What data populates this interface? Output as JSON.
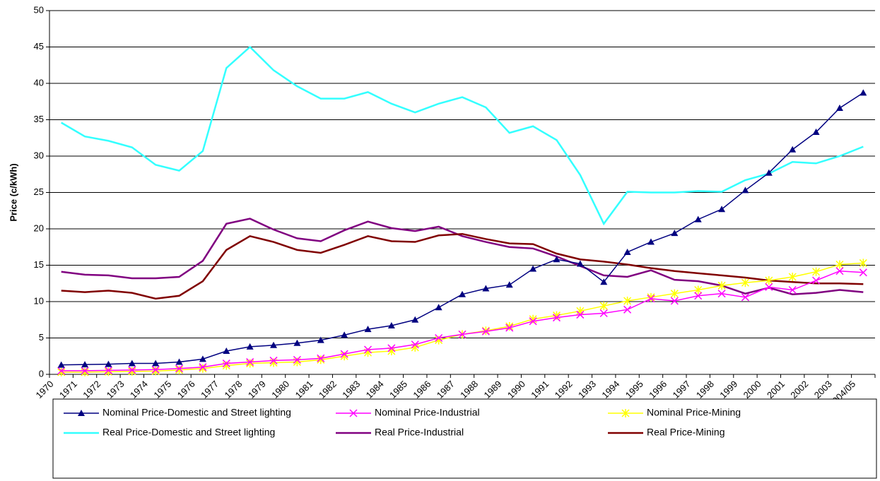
{
  "chart_data": {
    "type": "line",
    "y_label": "Price (c/kWh)",
    "categories": [
      "1970",
      "1971",
      "1972",
      "1973",
      "1974",
      "1975",
      "1976",
      "1977",
      "1978",
      "1979",
      "1980",
      "1981",
      "1982",
      "1983",
      "1984",
      "1985",
      "1986",
      "1987",
      "1988",
      "1989",
      "1990",
      "1991",
      "1992",
      "1993",
      "1994",
      "1995",
      "1996",
      "1997",
      "1998",
      "1999",
      "2000",
      "2001",
      "2002",
      "2003",
      "2004/05"
    ],
    "ylim": [
      0,
      50
    ],
    "yticks": [
      0,
      5,
      10,
      15,
      20,
      25,
      30,
      35,
      40,
      45,
      50
    ],
    "grid": true,
    "legend": "bottom",
    "series": [
      {
        "name": "Nominal Price-Domestic and Street lighting",
        "color": "#000080",
        "marker": "triangle",
        "values": [
          1.3,
          1.35,
          1.4,
          1.5,
          1.5,
          1.7,
          2.1,
          3.2,
          3.8,
          4.0,
          4.3,
          4.7,
          5.4,
          6.2,
          6.7,
          7.5,
          9.2,
          11.0,
          11.8,
          12.3,
          14.5,
          15.8,
          15.2,
          12.7,
          16.8,
          18.2,
          19.4,
          21.3,
          22.7,
          25.3,
          27.7,
          30.9,
          33.3,
          36.6,
          38.7
        ]
      },
      {
        "name": "Nominal Price-Industrial",
        "color": "#ff00ff",
        "marker": "x",
        "values": [
          0.5,
          0.5,
          0.55,
          0.6,
          0.65,
          0.8,
          1.0,
          1.5,
          1.7,
          1.9,
          2.0,
          2.2,
          2.8,
          3.4,
          3.6,
          4.1,
          5.0,
          5.5,
          5.9,
          6.4,
          7.3,
          7.8,
          8.2,
          8.4,
          8.9,
          10.4,
          10.1,
          10.8,
          11.1,
          10.6,
          12.0,
          11.6,
          12.9,
          14.2,
          14.0
        ]
      },
      {
        "name": "Nominal Price-Mining",
        "color": "#ffff00",
        "marker": "star",
        "values": [
          0.3,
          0.3,
          0.35,
          0.4,
          0.45,
          0.6,
          0.8,
          1.2,
          1.5,
          1.6,
          1.7,
          2.0,
          2.5,
          3.0,
          3.2,
          3.7,
          4.7,
          5.5,
          6.0,
          6.6,
          7.6,
          8.1,
          8.7,
          9.4,
          10.1,
          10.6,
          11.1,
          11.6,
          12.2,
          12.6,
          12.9,
          13.4,
          14.1,
          15.1,
          15.3
        ]
      },
      {
        "name": "Real Price-Domestic and Street lighting",
        "color": "#33ffff",
        "values": [
          34.6,
          32.7,
          32.1,
          31.2,
          28.8,
          28.0,
          30.7,
          42.1,
          45.0,
          41.8,
          39.6,
          37.9,
          37.9,
          38.8,
          37.2,
          36.0,
          37.2,
          38.1,
          36.7,
          33.2,
          34.1,
          32.2,
          27.4,
          20.7,
          25.1,
          25.0,
          25.0,
          25.2,
          25.1,
          26.7,
          27.6,
          29.2,
          29.0,
          30.0,
          31.3
        ]
      },
      {
        "name": "Real Price-Industrial",
        "color": "#800080",
        "values": [
          14.1,
          13.7,
          13.6,
          13.2,
          13.2,
          13.4,
          15.6,
          20.7,
          21.4,
          19.9,
          18.7,
          18.3,
          19.8,
          21.0,
          20.1,
          19.7,
          20.3,
          19.0,
          18.2,
          17.5,
          17.3,
          16.2,
          14.9,
          13.6,
          13.4,
          14.3,
          13.0,
          12.8,
          12.2,
          11.1,
          11.9,
          11.0,
          11.2,
          11.6,
          11.3
        ]
      },
      {
        "name": "Real Price-Mining",
        "color": "#800000",
        "values": [
          11.5,
          11.3,
          11.5,
          11.2,
          10.4,
          10.8,
          12.8,
          17.1,
          19.0,
          18.2,
          17.1,
          16.7,
          17.8,
          19.0,
          18.3,
          18.2,
          19.1,
          19.3,
          18.6,
          18.0,
          17.9,
          16.6,
          15.8,
          15.5,
          15.1,
          14.6,
          14.2,
          13.9,
          13.6,
          13.3,
          12.9,
          12.7,
          12.5,
          12.5,
          12.4
        ]
      }
    ]
  }
}
